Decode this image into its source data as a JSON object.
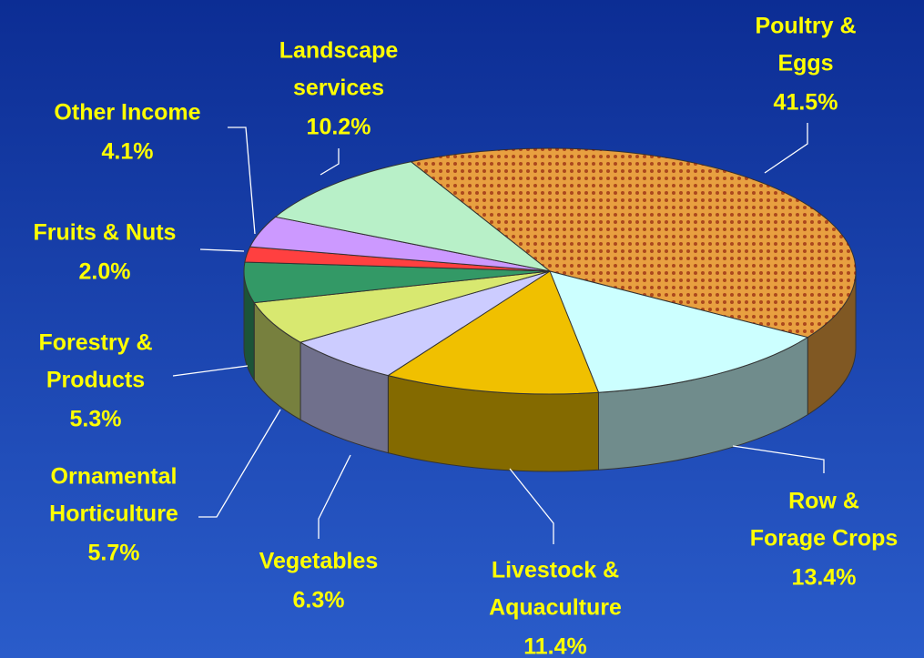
{
  "chart_data": {
    "type": "pie",
    "categories": [
      [
        "Poultry &",
        "Eggs"
      ],
      [
        "Row &",
        "Forage Crops"
      ],
      [
        "Livestock &",
        "Aquaculture"
      ],
      [
        "Vegetables"
      ],
      [
        "Ornamental",
        "Horticulture"
      ],
      [
        "Forestry &",
        "Products"
      ],
      [
        "Fruits & Nuts"
      ],
      [
        "Other Income"
      ],
      [
        "Landscape",
        "services"
      ]
    ],
    "values": [
      41.5,
      13.4,
      11.4,
      6.3,
      5.7,
      5.3,
      2.0,
      4.1,
      10.2
    ],
    "value_labels": [
      "41.5%",
      "13.4%",
      "11.4%",
      "6.3%",
      "5.7%",
      "5.3%",
      "2.0%",
      "4.1%",
      "10.2%"
    ],
    "colors": [
      "#e8a040",
      "#ccffff",
      "#f0c000",
      "#ccccff",
      "#d8e870",
      "#339966",
      "#ff4040",
      "#cc99ff",
      "#b8f0c8"
    ]
  }
}
